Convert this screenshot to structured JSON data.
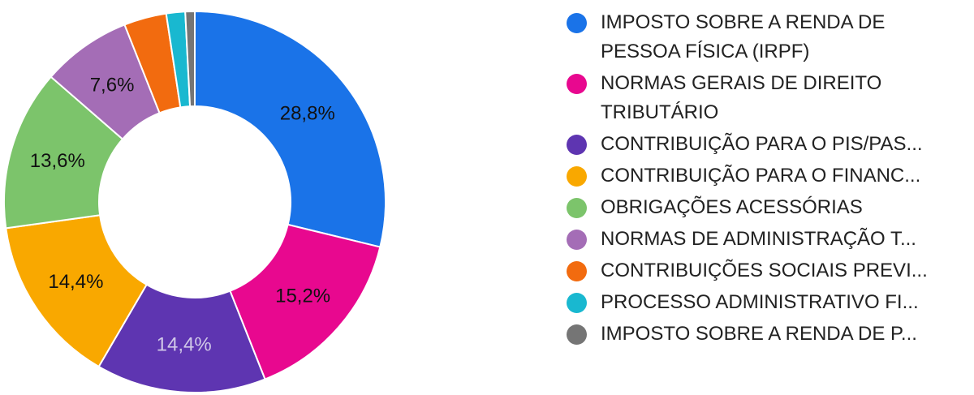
{
  "chart_data": {
    "type": "pie",
    "donut": true,
    "legend_position": "right",
    "slices": [
      {
        "name": "IMPOSTO SOBRE A RENDA DE PESSOA FÍSICA (IRPF)",
        "value": 28.8,
        "label": "28,8%",
        "color": "#1a73e8",
        "label_color": "#111111"
      },
      {
        "name": "NORMAS GERAIS DE DIREITO TRIBUTÁRIO",
        "value": 15.2,
        "label": "15,2%",
        "color": "#e8088f",
        "label_color": "#111111"
      },
      {
        "name": "CONTRIBUIÇÃO PARA O PIS/PAS...",
        "value": 14.4,
        "label": "14,4%",
        "color": "#5e35b1",
        "label_color": "#d0c8e8"
      },
      {
        "name": "CONTRIBUIÇÃO PARA O FINANC...",
        "value": 14.4,
        "label": "14,4%",
        "color": "#f9a800",
        "label_color": "#111111"
      },
      {
        "name": "OBRIGAÇÕES ACESSÓRIAS",
        "value": 13.6,
        "label": "13,6%",
        "color": "#7cc46b",
        "label_color": "#111111"
      },
      {
        "name": "NORMAS DE ADMINISTRAÇÃO T...",
        "value": 7.6,
        "label": "7,6%",
        "color": "#a46db6",
        "label_color": "#111111"
      },
      {
        "name": "CONTRIBUIÇÕES SOCIAIS PREVI...",
        "value": 3.6,
        "label": "",
        "color": "#f26b0f",
        "label_color": "#111111"
      },
      {
        "name": "PROCESSO ADMINISTRATIVO FI...",
        "value": 1.6,
        "label": "",
        "color": "#19b8d0",
        "label_color": "#111111"
      },
      {
        "name": "IMPOSTO SOBRE A RENDA DE P...",
        "value": 0.8,
        "label": "",
        "color": "#757575",
        "label_color": "#111111"
      }
    ]
  }
}
